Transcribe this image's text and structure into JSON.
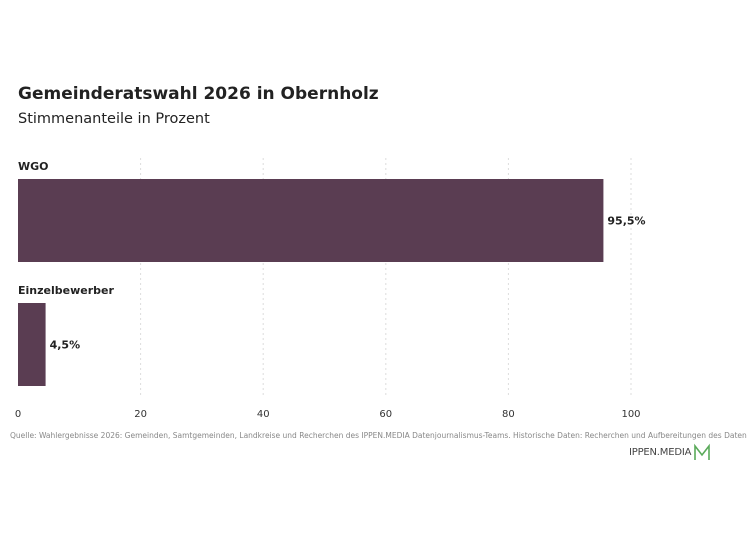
{
  "title": "Gemeinderatswahl 2026 in Obernholz",
  "subtitle": "Stimmenanteile in Prozent",
  "chart_data": {
    "type": "bar",
    "orientation": "horizontal",
    "categories": [
      "WGO",
      "Einzelbewerber"
    ],
    "values": [
      95.5,
      4.5
    ],
    "value_labels": [
      "95,5%",
      "4,5%"
    ],
    "xlim": [
      0,
      100
    ],
    "xticks": [
      0,
      20,
      40,
      60,
      80,
      100
    ],
    "xlabel": "",
    "ylabel": "",
    "grid": "vertical dotted",
    "bar_color": "#5a3d52"
  },
  "footer": {
    "source": "Quelle: Wahlergebnisse 2026: Gemeinden, Samtgemeinden, Landkreise und Recherchen des IPPEN.MEDIA Datenjournalismus-Teams. Historische Daten: Recherchen und Aufbereitungen des Daten",
    "logo_text": "IPPEN.MEDIA",
    "logo_color": "#5aaa5a"
  }
}
